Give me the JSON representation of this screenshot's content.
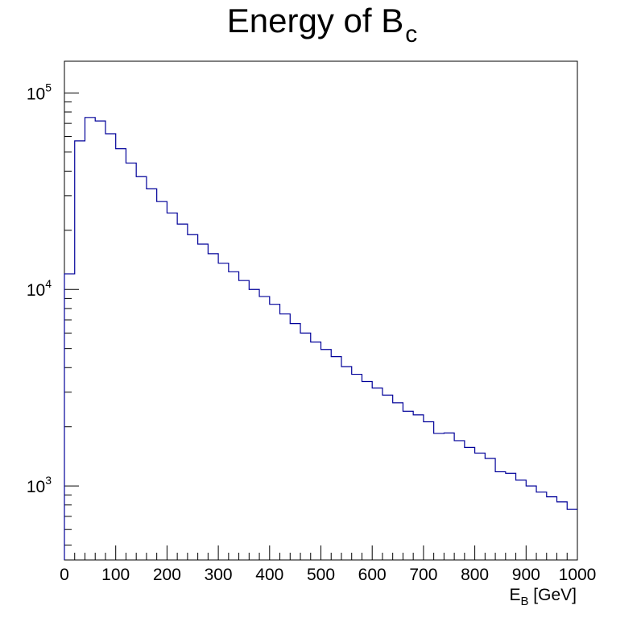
{
  "chart_data": {
    "type": "histogram",
    "title": {
      "main": "Energy of B",
      "sub": "c"
    },
    "xlabel": {
      "main": "E",
      "sub": "B",
      "rest": " [GeV]"
    },
    "ylabel": "",
    "xlim": [
      0,
      1000
    ],
    "ylim": [
      420,
      145000
    ],
    "log_y": true,
    "grid": false,
    "legend": "none",
    "line_color": "#000099",
    "bin_width": 20,
    "bin_edges_start": 0,
    "values": [
      12000,
      57000,
      75000,
      72000,
      62000,
      52000,
      44000,
      37500,
      32500,
      28000,
      24500,
      21500,
      19000,
      17000,
      15200,
      13600,
      12300,
      11100,
      10000,
      9200,
      8400,
      7500,
      6700,
      6000,
      5400,
      4950,
      4550,
      4050,
      3700,
      3400,
      3150,
      2900,
      2650,
      2400,
      2300,
      2120,
      1850,
      1860,
      1700,
      1570,
      1470,
      1380,
      1180,
      1160,
      1070,
      1000,
      930,
      880,
      830,
      760
    ],
    "x_ticks": [
      "0",
      "100",
      "200",
      "300",
      "400",
      "500",
      "600",
      "700",
      "800",
      "900",
      "1000"
    ],
    "x_tick_values": [
      0,
      100,
      200,
      300,
      400,
      500,
      600,
      700,
      800,
      900,
      1000
    ],
    "y_ticks": [
      {
        "value": 1000,
        "base": "10",
        "exp": "3"
      },
      {
        "value": 10000,
        "base": "10",
        "exp": "4"
      },
      {
        "value": 100000,
        "base": "10",
        "exp": "5"
      }
    ]
  }
}
